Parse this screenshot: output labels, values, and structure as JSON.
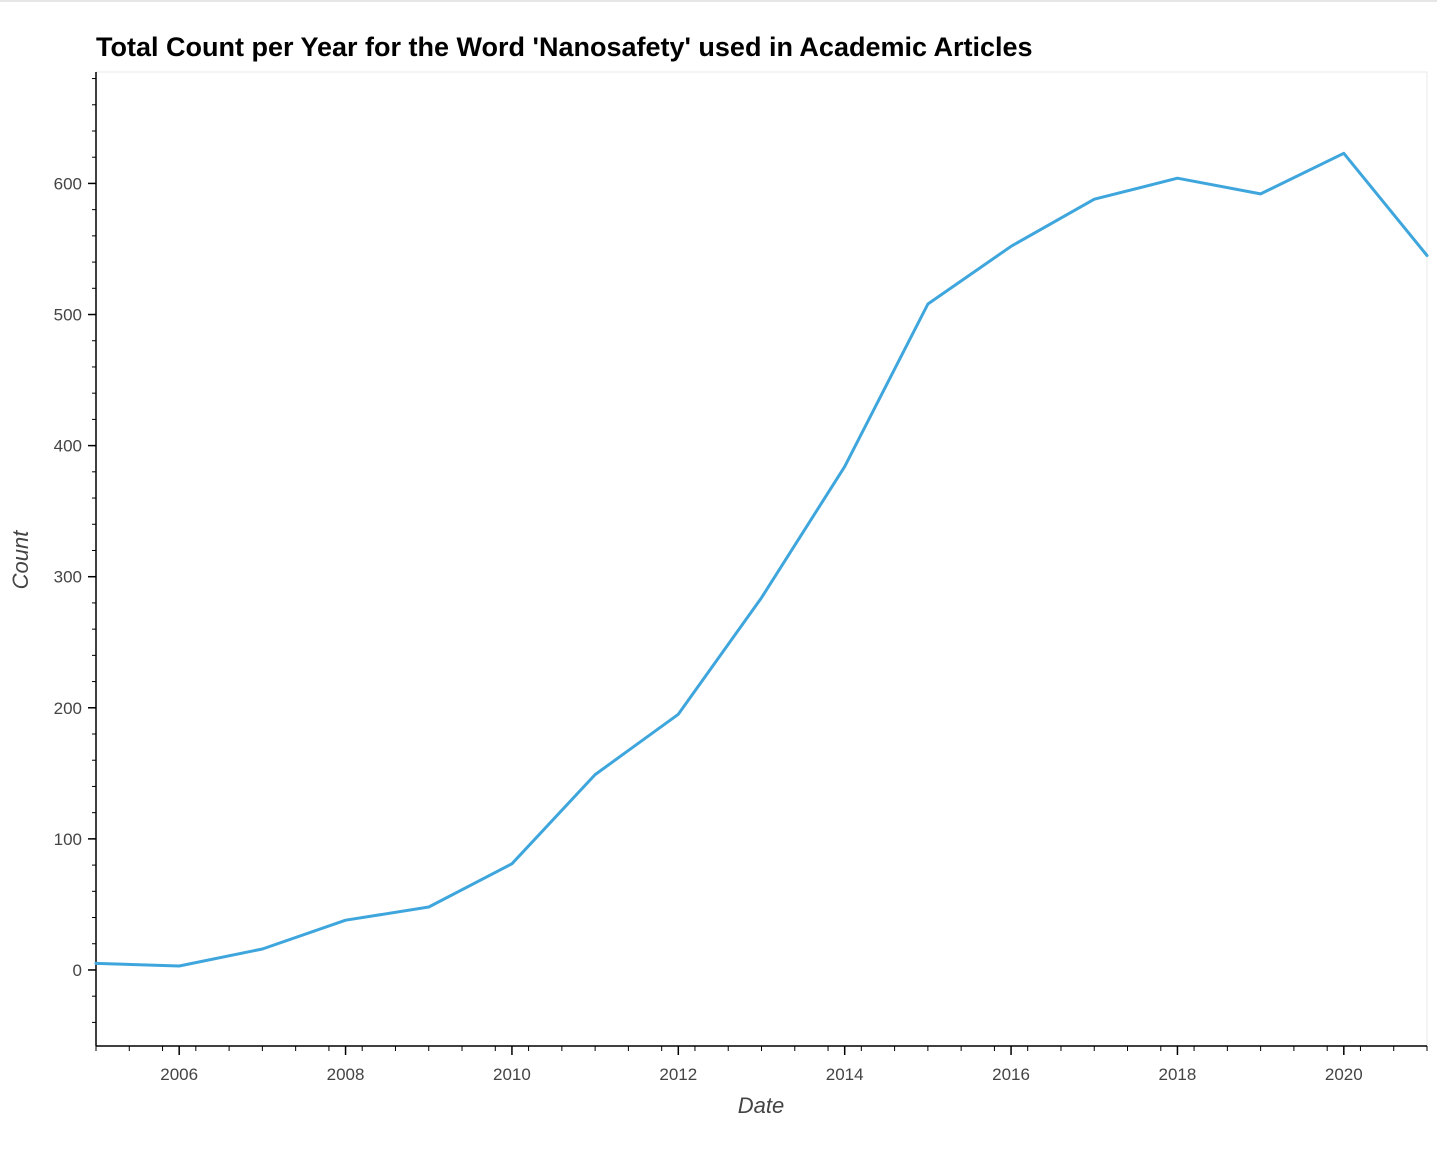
{
  "chart_data": {
    "type": "line",
    "title": "Total Count per Year for the Word 'Nanosafety' used in Academic Articles",
    "xlabel": "Date",
    "ylabel": "Count",
    "xlim": [
      2005,
      2021
    ],
    "ylim": [
      -58,
      685
    ],
    "x_ticks": [
      2006,
      2008,
      2010,
      2012,
      2014,
      2016,
      2018,
      2020
    ],
    "y_ticks": [
      0,
      100,
      200,
      300,
      400,
      500,
      600
    ],
    "grid": false,
    "legend": "none",
    "series": [
      {
        "color": "#3ea6dc",
        "x": [
          2005,
          2006,
          2007,
          2008,
          2009,
          2010,
          2011,
          2012,
          2013,
          2014,
          2015,
          2016,
          2017,
          2018,
          2019,
          2020,
          2021
        ],
        "y": [
          5,
          3,
          16,
          38,
          48,
          81,
          149,
          195,
          284,
          384,
          508,
          552,
          588,
          604,
          592,
          623,
          545
        ]
      }
    ]
  }
}
